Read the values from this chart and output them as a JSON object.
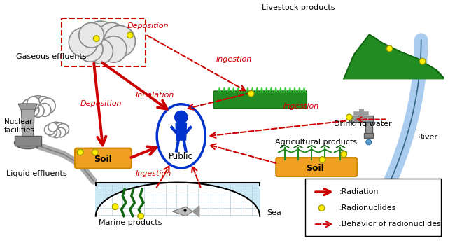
{
  "bg_color": "#ffffff",
  "red": "#cc0000",
  "orange": "#f0a020",
  "blue_person": "#0033cc",
  "gray": "#888888",
  "light_blue": "#cce8f4",
  "green": "#228B22",
  "dark_green": "#116611",
  "labels": {
    "gaseous_effluents": "Gaseous effluents",
    "liquid_effluents": "Liquid effluents",
    "nuclear_facilities": "Nuclear\nfacilities",
    "deposition1": "Deposition",
    "deposition2": "Deposition",
    "inhalation": "Inhalation",
    "ingestion1": "Ingestion",
    "ingestion2": "Ingestion",
    "ingestion3": "Ingestion",
    "soil1": "Soil",
    "soil2": "Soil",
    "public": "Public",
    "livestock": "Livestock products",
    "drinking_water": "Drinking water",
    "agricultural": "Agricultural products",
    "marine": "Marine products",
    "sea": "Sea",
    "river": "River",
    "legend_radiation": ":Radiation",
    "legend_radionuclides": ":Radionuclides",
    "legend_behavior": ":Behavior of radionuclides"
  }
}
